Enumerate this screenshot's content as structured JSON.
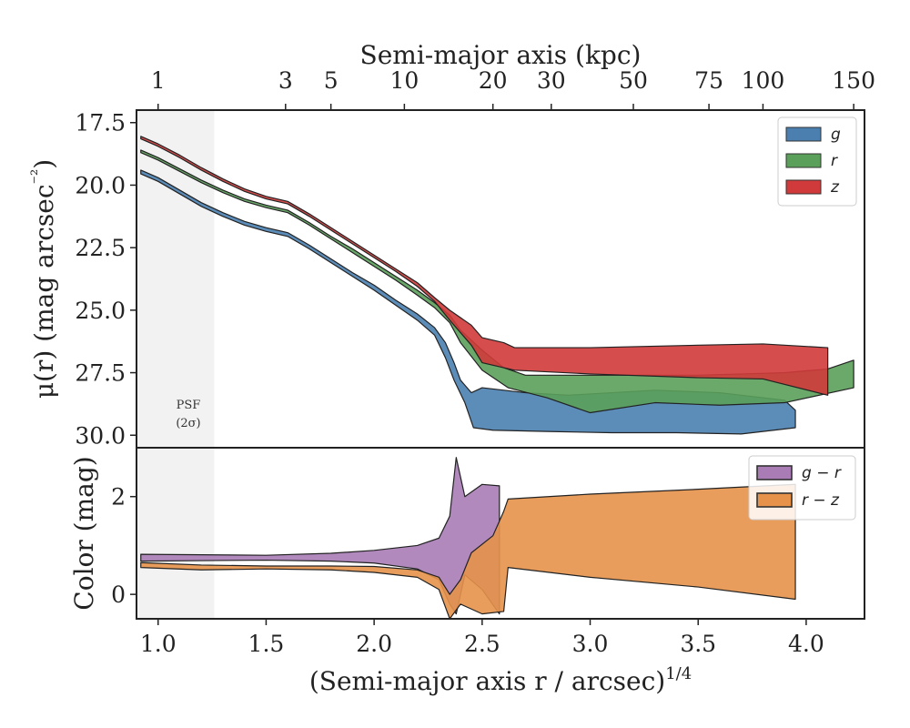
{
  "chart_data": [
    {
      "type": "area",
      "panel": "surface-brightness",
      "ylabel": "μ(r) (mag arcsec⁻²)",
      "top_xlabel": "Semi-major axis (kpc)",
      "top_ticks": [
        {
          "label": "1",
          "x": 1.0
        },
        {
          "label": "3",
          "x": 1.59
        },
        {
          "label": "5",
          "x": 1.8
        },
        {
          "label": "10",
          "x": 2.14
        },
        {
          "label": "20",
          "x": 2.55
        },
        {
          "label": "30",
          "x": 2.82
        },
        {
          "label": "50",
          "x": 3.2
        },
        {
          "label": "75",
          "x": 3.55
        },
        {
          "label": "100",
          "x": 3.8
        },
        {
          "label": "150",
          "x": 4.22
        }
      ],
      "xlim": [
        0.9,
        4.27
      ],
      "ylim": [
        30.5,
        17.0
      ],
      "yticks": [
        17.5,
        20.0,
        22.5,
        25.0,
        27.5,
        30.0
      ],
      "ytick_labels": [
        "17.5",
        "20.0",
        "22.5",
        "25.0",
        "27.5",
        "30.0"
      ],
      "legend": {
        "placement": "top-right"
      },
      "annotation": {
        "line1": "PSF",
        "line2": "(2σ)"
      },
      "psf_region": [
        0.9,
        1.26
      ],
      "series": [
        {
          "name": "g",
          "color": "#4a7fb0",
          "upper": [
            [
              0.92,
              19.4
            ],
            [
              1.0,
              19.7
            ],
            [
              1.1,
              20.2
            ],
            [
              1.2,
              20.7
            ],
            [
              1.3,
              21.1
            ],
            [
              1.4,
              21.45
            ],
            [
              1.5,
              21.7
            ],
            [
              1.6,
              21.9
            ],
            [
              1.7,
              22.4
            ],
            [
              1.8,
              22.95
            ],
            [
              1.9,
              23.5
            ],
            [
              2.0,
              24.0
            ],
            [
              2.1,
              24.6
            ],
            [
              2.2,
              25.15
            ],
            [
              2.28,
              25.7
            ],
            [
              2.33,
              26.3
            ],
            [
              2.37,
              27.1
            ],
            [
              2.4,
              27.8
            ],
            [
              2.45,
              28.3
            ],
            [
              2.5,
              28.1
            ],
            [
              2.6,
              28.2
            ],
            [
              2.7,
              28.3
            ],
            [
              2.9,
              28.4
            ],
            [
              3.1,
              28.3
            ],
            [
              3.3,
              28.2
            ],
            [
              3.6,
              28.3
            ],
            [
              3.9,
              28.6
            ],
            [
              3.95,
              29.0
            ]
          ],
          "lower": [
            [
              0.92,
              19.55
            ],
            [
              1.0,
              19.85
            ],
            [
              1.1,
              20.35
            ],
            [
              1.2,
              20.85
            ],
            [
              1.3,
              21.25
            ],
            [
              1.4,
              21.6
            ],
            [
              1.5,
              21.85
            ],
            [
              1.6,
              22.05
            ],
            [
              1.7,
              22.55
            ],
            [
              1.8,
              23.1
            ],
            [
              1.9,
              23.65
            ],
            [
              2.0,
              24.2
            ],
            [
              2.1,
              24.8
            ],
            [
              2.2,
              25.4
            ],
            [
              2.28,
              26.0
            ],
            [
              2.33,
              26.9
            ],
            [
              2.37,
              27.8
            ],
            [
              2.42,
              28.7
            ],
            [
              2.46,
              29.7
            ],
            [
              2.55,
              29.8
            ],
            [
              2.8,
              29.85
            ],
            [
              3.1,
              29.9
            ],
            [
              3.4,
              29.9
            ],
            [
              3.7,
              29.95
            ],
            [
              3.95,
              29.7
            ]
          ]
        },
        {
          "name": "r",
          "color": "#5aa05a",
          "upper": [
            [
              0.92,
              18.6
            ],
            [
              1.0,
              18.9
            ],
            [
              1.1,
              19.35
            ],
            [
              1.2,
              19.8
            ],
            [
              1.3,
              20.2
            ],
            [
              1.4,
              20.55
            ],
            [
              1.5,
              20.8
            ],
            [
              1.6,
              21.0
            ],
            [
              1.7,
              21.5
            ],
            [
              1.8,
              22.05
            ],
            [
              1.9,
              22.55
            ],
            [
              2.0,
              23.1
            ],
            [
              2.1,
              23.65
            ],
            [
              2.2,
              24.2
            ],
            [
              2.28,
              24.7
            ],
            [
              2.35,
              25.2
            ],
            [
              2.4,
              25.8
            ],
            [
              2.5,
              26.6
            ],
            [
              2.6,
              27.3
            ],
            [
              2.7,
              27.6
            ],
            [
              3.0,
              27.6
            ],
            [
              3.5,
              27.6
            ],
            [
              3.9,
              27.5
            ],
            [
              4.1,
              27.35
            ],
            [
              4.22,
              27.0
            ]
          ],
          "lower": [
            [
              0.92,
              18.7
            ],
            [
              1.0,
              19.0
            ],
            [
              1.1,
              19.45
            ],
            [
              1.2,
              19.9
            ],
            [
              1.3,
              20.3
            ],
            [
              1.4,
              20.65
            ],
            [
              1.5,
              20.9
            ],
            [
              1.6,
              21.1
            ],
            [
              1.7,
              21.6
            ],
            [
              1.8,
              22.15
            ],
            [
              1.9,
              22.7
            ],
            [
              2.0,
              23.25
            ],
            [
              2.1,
              23.8
            ],
            [
              2.2,
              24.4
            ],
            [
              2.28,
              24.9
            ],
            [
              2.35,
              25.5
            ],
            [
              2.4,
              26.3
            ],
            [
              2.5,
              27.4
            ],
            [
              2.62,
              28.1
            ],
            [
              2.8,
              28.5
            ],
            [
              3.0,
              29.1
            ],
            [
              3.3,
              28.7
            ],
            [
              3.6,
              28.8
            ],
            [
              3.9,
              28.7
            ],
            [
              4.22,
              28.1
            ]
          ]
        },
        {
          "name": "z",
          "color": "#d03a3a",
          "upper": [
            [
              0.92,
              18.05
            ],
            [
              1.0,
              18.35
            ],
            [
              1.1,
              18.8
            ],
            [
              1.2,
              19.3
            ],
            [
              1.3,
              19.75
            ],
            [
              1.4,
              20.15
            ],
            [
              1.5,
              20.45
            ],
            [
              1.6,
              20.65
            ],
            [
              1.7,
              21.15
            ],
            [
              1.8,
              21.7
            ],
            [
              1.9,
              22.25
            ],
            [
              2.0,
              22.8
            ],
            [
              2.1,
              23.35
            ],
            [
              2.2,
              23.9
            ],
            [
              2.28,
              24.5
            ],
            [
              2.35,
              25.0
            ],
            [
              2.45,
              25.6
            ],
            [
              2.5,
              26.1
            ],
            [
              2.6,
              26.3
            ],
            [
              2.65,
              26.5
            ],
            [
              3.0,
              26.5
            ],
            [
              3.5,
              26.4
            ],
            [
              3.8,
              26.35
            ],
            [
              4.1,
              26.5
            ]
          ],
          "lower": [
            [
              0.92,
              18.15
            ],
            [
              1.0,
              18.45
            ],
            [
              1.1,
              18.9
            ],
            [
              1.2,
              19.4
            ],
            [
              1.3,
              19.85
            ],
            [
              1.4,
              20.25
            ],
            [
              1.5,
              20.55
            ],
            [
              1.6,
              20.75
            ],
            [
              1.7,
              21.25
            ],
            [
              1.8,
              21.8
            ],
            [
              1.9,
              22.35
            ],
            [
              2.0,
              22.9
            ],
            [
              2.1,
              23.45
            ],
            [
              2.2,
              24.05
            ],
            [
              2.28,
              24.65
            ],
            [
              2.35,
              25.4
            ],
            [
              2.45,
              26.4
            ],
            [
              2.5,
              27.1
            ],
            [
              2.6,
              27.3
            ],
            [
              2.65,
              27.4
            ],
            [
              3.0,
              27.55
            ],
            [
              3.5,
              27.7
            ],
            [
              3.8,
              27.75
            ],
            [
              4.1,
              28.4
            ]
          ]
        }
      ]
    },
    {
      "type": "area",
      "panel": "color",
      "xlabel": "(Semi-major axis r / arcsec)",
      "xlabel_exp": "1/4",
      "ylabel": "Color (mag)",
      "xlim": [
        0.9,
        4.27
      ],
      "ylim": [
        -0.5,
        3.0
      ],
      "xticks": [
        1.0,
        1.5,
        2.0,
        2.5,
        3.0,
        3.5,
        4.0
      ],
      "xtick_labels": [
        "1.0",
        "1.5",
        "2.0",
        "2.5",
        "3.0",
        "3.5",
        "4.0"
      ],
      "yticks": [
        0,
        2
      ],
      "ytick_labels": [
        "0",
        "2"
      ],
      "legend": {
        "placement": "top-right"
      },
      "series": [
        {
          "name": "g − r",
          "color": "#a97cb6",
          "upper": [
            [
              0.92,
              0.82
            ],
            [
              1.2,
              0.81
            ],
            [
              1.5,
              0.8
            ],
            [
              1.8,
              0.84
            ],
            [
              2.0,
              0.9
            ],
            [
              2.2,
              1.0
            ],
            [
              2.3,
              1.15
            ],
            [
              2.35,
              1.6
            ],
            [
              2.38,
              2.8
            ],
            [
              2.42,
              2.0
            ],
            [
              2.5,
              2.25
            ],
            [
              2.58,
              2.22
            ],
            [
              2.58,
              1.1
            ]
          ],
          "lower": [
            [
              0.92,
              0.68
            ],
            [
              1.2,
              0.69
            ],
            [
              1.5,
              0.7
            ],
            [
              1.8,
              0.68
            ],
            [
              2.0,
              0.64
            ],
            [
              2.2,
              0.52
            ],
            [
              2.3,
              0.3
            ],
            [
              2.35,
              -0.2
            ],
            [
              2.38,
              -0.4
            ],
            [
              2.42,
              0.4
            ],
            [
              2.5,
              0.1
            ],
            [
              2.58,
              -0.4
            ]
          ]
        },
        {
          "name": "r − z",
          "color": "#e6924a",
          "upper": [
            [
              0.92,
              0.65
            ],
            [
              1.2,
              0.6
            ],
            [
              1.5,
              0.58
            ],
            [
              1.8,
              0.58
            ],
            [
              2.0,
              0.57
            ],
            [
              2.2,
              0.5
            ],
            [
              2.3,
              0.35
            ],
            [
              2.35,
              0.0
            ],
            [
              2.4,
              0.3
            ],
            [
              2.45,
              0.85
            ],
            [
              2.55,
              1.2
            ],
            [
              2.6,
              1.7
            ],
            [
              2.62,
              1.95
            ],
            [
              3.0,
              2.05
            ],
            [
              3.5,
              2.15
            ],
            [
              3.95,
              2.25
            ]
          ],
          "lower": [
            [
              0.92,
              0.55
            ],
            [
              1.2,
              0.5
            ],
            [
              1.5,
              0.52
            ],
            [
              1.8,
              0.5
            ],
            [
              2.0,
              0.45
            ],
            [
              2.2,
              0.35
            ],
            [
              2.3,
              0.1
            ],
            [
              2.35,
              -0.5
            ],
            [
              2.4,
              -0.2
            ],
            [
              2.5,
              -0.4
            ],
            [
              2.6,
              -0.35
            ],
            [
              2.62,
              0.55
            ],
            [
              3.0,
              0.35
            ],
            [
              3.5,
              0.15
            ],
            [
              3.95,
              -0.1
            ]
          ]
        }
      ]
    }
  ]
}
